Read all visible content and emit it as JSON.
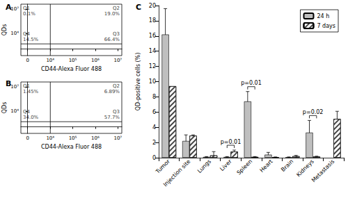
{
  "chart_data": [
    {
      "type": "quadrant",
      "title": "A",
      "x_label": "CD44-Alexa Fluor 488",
      "y_label": "QDs",
      "xlim": [
        -1500,
        15000000
      ],
      "ylim": [
        -800,
        40000000
      ],
      "xticks": [
        0,
        {
          "value": 10000,
          "label": "10⁴"
        },
        {
          "value": 100000,
          "label": "10⁵"
        },
        {
          "value": 1000000,
          "label": "10⁶"
        },
        {
          "value": 10000000,
          "label": "10⁷"
        }
      ],
      "yticks": [
        {
          "value": 10000,
          "label": "10⁴"
        },
        {
          "value": 10000000,
          "label": "10⁷"
        }
      ],
      "gates": {
        "x": 10000,
        "y": 500
      },
      "quadrants": [
        {
          "name": "Q1",
          "text": "0.1%"
        },
        {
          "name": "Q2",
          "text": "19.0%"
        },
        {
          "name": "Q3",
          "text": "66.4%"
        },
        {
          "name": "Q4",
          "text": "14.5%"
        }
      ]
    },
    {
      "type": "quadrant",
      "title": "B",
      "x_label": "CD44-Alexa Fluor 488",
      "y_label": "QDs",
      "xlim": [
        -1500,
        15000000
      ],
      "ylim": [
        -800,
        40000000
      ],
      "xticks": [
        0,
        {
          "value": 10000,
          "label": "10⁴"
        },
        {
          "value": 100000,
          "label": "10⁵"
        },
        {
          "value": 1000000,
          "label": "10⁶"
        },
        {
          "value": 10000000,
          "label": "10⁷"
        }
      ],
      "yticks": [
        {
          "value": 10000,
          "label": "10⁴"
        },
        {
          "value": 10000000,
          "label": "10⁷"
        }
      ],
      "gates": {
        "x": 10000,
        "y": 500
      },
      "quadrants": [
        {
          "name": "Q1",
          "text": "1.45%"
        },
        {
          "name": "Q2",
          "text": "6.89%"
        },
        {
          "name": "Q3",
          "text": "57.7%"
        },
        {
          "name": "Q4",
          "text": "34.0%"
        }
      ]
    },
    {
      "type": "bar",
      "title": "C",
      "y_label": "QD-positive cells (%)",
      "categories": [
        "Tumor",
        "Injection site",
        "Lungs",
        "Liver",
        "Spleen",
        "Heart",
        "Brain",
        "Kidneys",
        "Metastasis"
      ],
      "series": [
        {
          "name": "24 h",
          "color": "#bfbfbf",
          "values": [
            16.2,
            2.2,
            0.1,
            0.1,
            7.4,
            0.4,
            0.05,
            3.3,
            null
          ],
          "errors": [
            3.4,
            0.8,
            0.05,
            0.05,
            1.3,
            0.3,
            0.05,
            1.6,
            null
          ]
        },
        {
          "name": "7 days",
          "color": "#ffffff",
          "values": [
            9.4,
            2.9,
            0.3,
            0.8,
            0.1,
            0.05,
            0.2,
            0.15,
            5.1
          ],
          "errors": [
            null,
            0.1,
            0.5,
            0.2,
            0.05,
            0.05,
            0.1,
            0.05,
            1.0
          ]
        }
      ],
      "ylim": [
        0,
        20
      ],
      "yticks": [
        0,
        2,
        4,
        6,
        8,
        10,
        12,
        14,
        16,
        18,
        20
      ],
      "legend": "upper right",
      "grid": false,
      "annotations": [
        {
          "text": "p=0.01",
          "category": "Liver"
        },
        {
          "text": "p=0.01",
          "category": "Spleen"
        },
        {
          "text": "p=0.02",
          "category": "Kidneys"
        }
      ]
    }
  ]
}
